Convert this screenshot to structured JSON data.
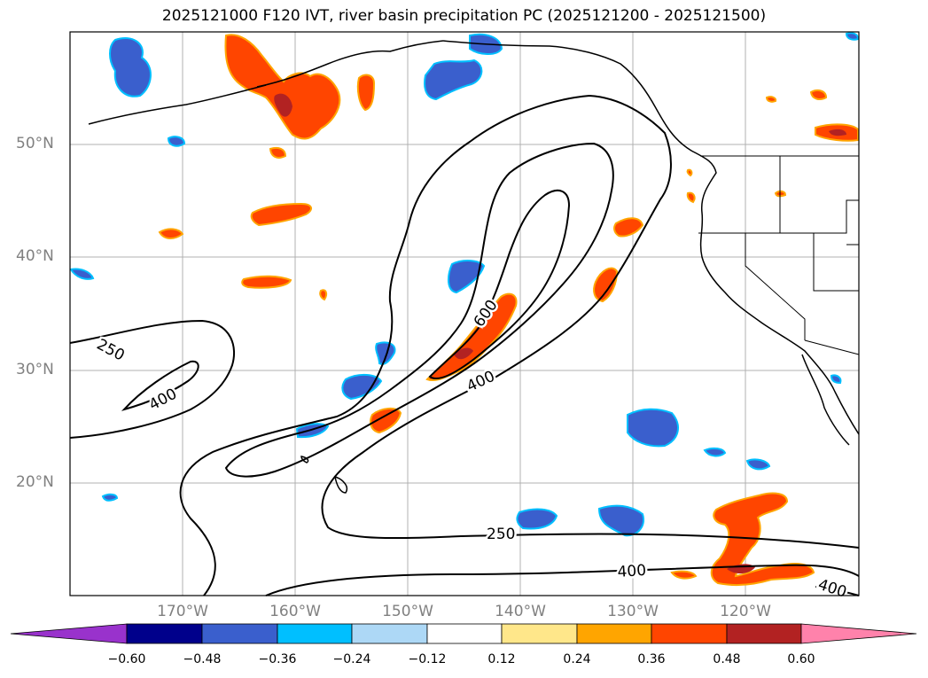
{
  "title": "2025121000 F120 IVT, river basin precipitation PC (2025121200 - 2025121500)",
  "lat_labels": [
    "50°N",
    "40°N",
    "30°N",
    "20°N"
  ],
  "lon_labels": [
    "170°W",
    "160°W",
    "150°W",
    "140°W",
    "130°W",
    "120°W"
  ],
  "contour_labels": [
    "250",
    "400",
    "600",
    "400",
    "250",
    "400",
    "400"
  ],
  "colorbar": {
    "ticks": [
      "−0.60",
      "−0.48",
      "−0.36",
      "−0.24",
      "−0.12",
      "0.12",
      "0.24",
      "0.36",
      "0.48",
      "0.60"
    ],
    "colors": [
      "#9932cc",
      "#00008b",
      "#3a5fcd",
      "#00bfff",
      "#add8f6",
      "#ffffff",
      "#ffe78a",
      "#ffa500",
      "#ff4500",
      "#b22222",
      "#ff82ab"
    ]
  },
  "colors": {
    "grid": "#b0b0b0",
    "contour": "#000000",
    "positive_mid": "#ff4500",
    "positive_high": "#b22222",
    "negative_mid": "#3a5fcd"
  }
}
